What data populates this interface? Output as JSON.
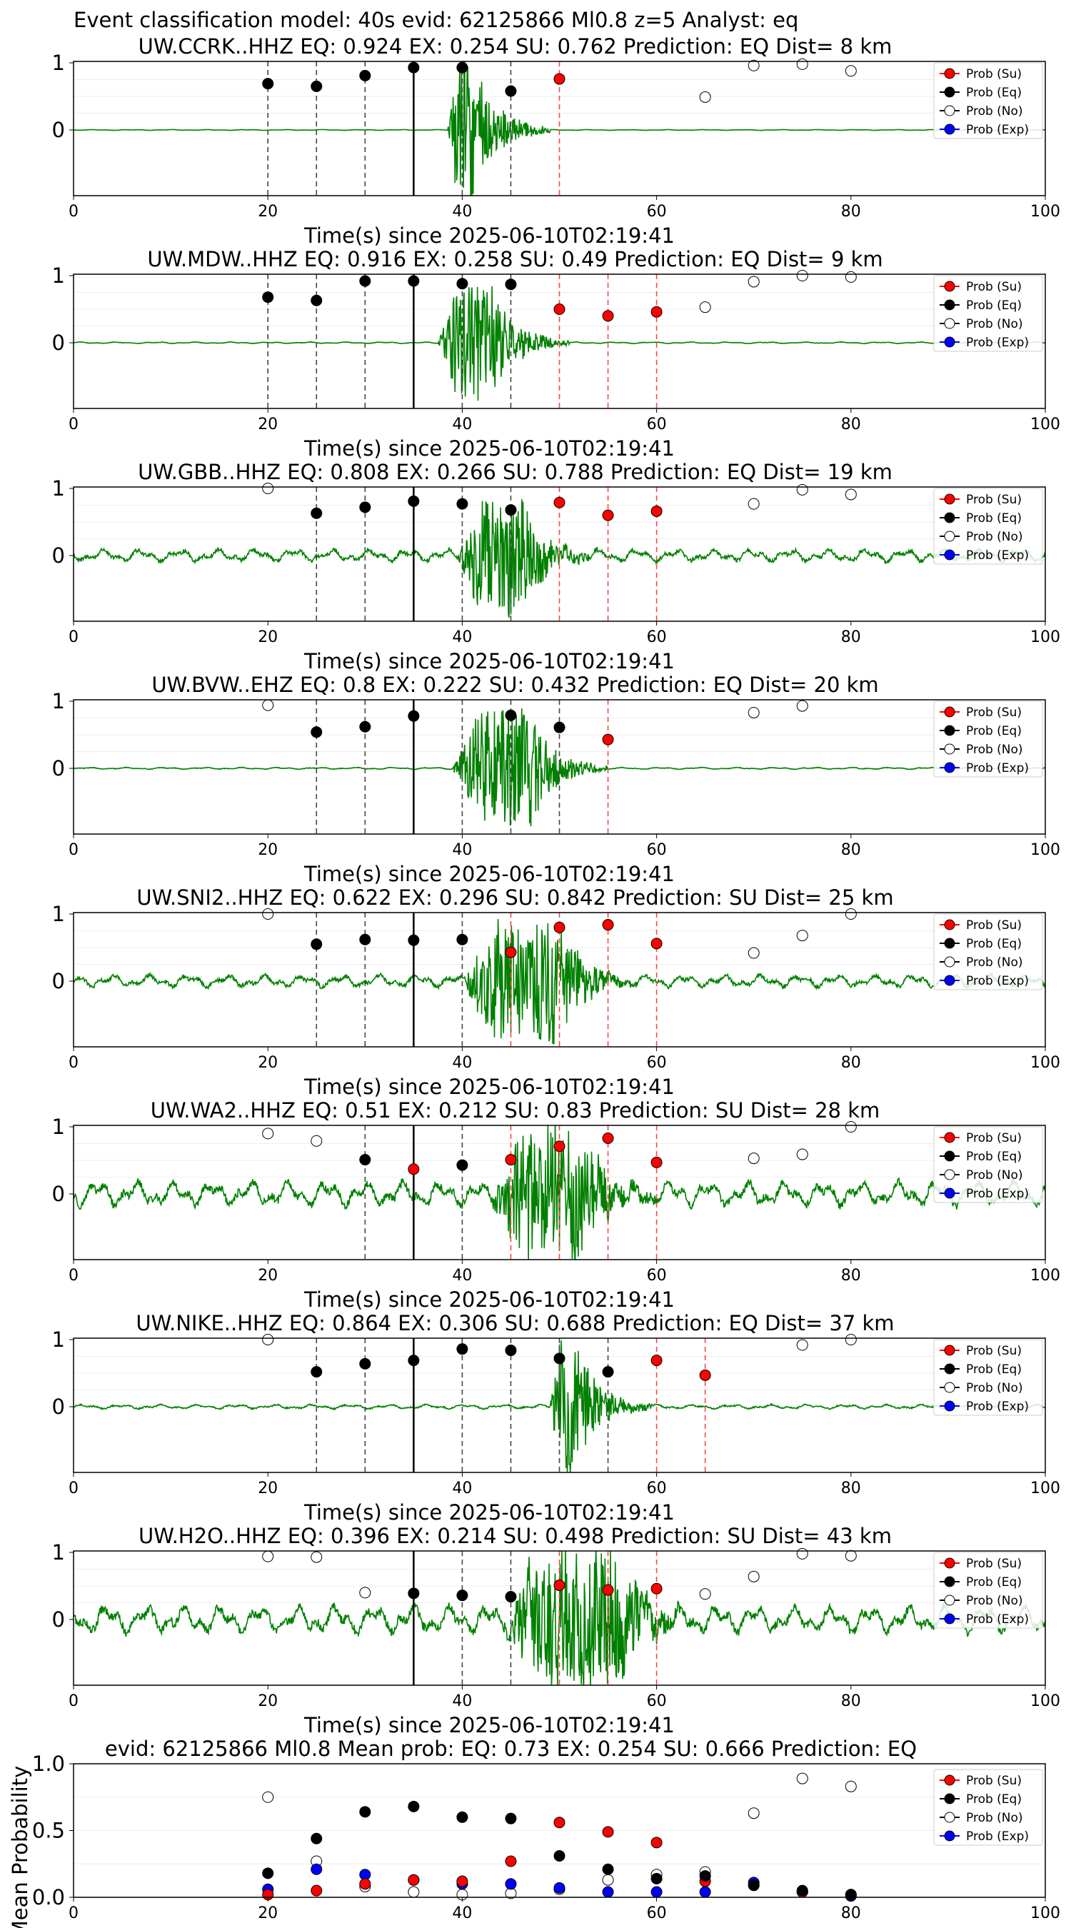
{
  "figure": {
    "title": "Event classification model: 40s evid: 62125866 Ml0.8 z=5 Analyst: eq"
  },
  "colors": {
    "waveform": "#008000",
    "su": "#ff0000",
    "eq": "#000000",
    "no": "#ffffff",
    "exp": "#0000ff",
    "su_line": "#ff4444",
    "eq_line": "#444444",
    "origin_line": "#000000"
  },
  "legend": [
    "Prob (Su)",
    "Prob (Eq)",
    "Prob (No)",
    "Prob (Exp)"
  ],
  "chart_data": [
    {
      "type": "scatter",
      "title": "UW.CCRK..HHZ   EQ: 0.924  EX: 0.254  SU: 0.762   Prediction: EQ    Dist= 8 km",
      "xlabel": "Time(s) since 2025-06-10T02:19:41",
      "xlim": [
        0,
        100
      ],
      "x_ticks": [
        "0",
        "20",
        "40",
        "60",
        "80",
        "100"
      ],
      "y_ticks": [
        "0",
        "1"
      ],
      "noise": 0.006,
      "spike": 1.1,
      "event_start": 38.5,
      "event_end": 41,
      "su": [
        [
          50,
          0.76
        ]
      ],
      "eq": [
        [
          20,
          0.69
        ],
        [
          25,
          0.65
        ],
        [
          30,
          0.81
        ],
        [
          35,
          0.93
        ],
        [
          40,
          0.93
        ],
        [
          45,
          0.58
        ]
      ],
      "no": [
        [
          65,
          0.49
        ],
        [
          70,
          0.96
        ],
        [
          75,
          0.98
        ],
        [
          80,
          0.88
        ]
      ],
      "exp": [],
      "eq_lines": [
        20,
        25,
        30,
        40,
        45
      ],
      "su_lines": [
        50
      ],
      "origin_line": 35
    },
    {
      "type": "scatter",
      "title": "UW.MDW..HHZ   EQ: 0.916  EX: 0.258  SU: 0.49   Prediction: EQ    Dist= 9 km",
      "xlabel": "Time(s) since 2025-06-10T02:19:41",
      "xlim": [
        0,
        100
      ],
      "x_ticks": [
        "0",
        "20",
        "40",
        "60",
        "80",
        "100"
      ],
      "y_ticks": [
        "0",
        "1"
      ],
      "noise": 0.012,
      "spike": 0.9,
      "event_start": 37.5,
      "event_end": 43,
      "su": [
        [
          50,
          0.5
        ],
        [
          55,
          0.4
        ],
        [
          60,
          0.46
        ]
      ],
      "eq": [
        [
          20,
          0.68
        ],
        [
          25,
          0.63
        ],
        [
          30,
          0.92
        ],
        [
          35,
          0.92
        ],
        [
          40,
          0.88
        ],
        [
          45,
          0.87
        ]
      ],
      "no": [
        [
          65,
          0.53
        ],
        [
          70,
          0.91
        ],
        [
          75,
          1.0
        ],
        [
          80,
          0.98
        ]
      ],
      "exp": [],
      "eq_lines": [
        20,
        25,
        30,
        40,
        45
      ],
      "su_lines": [
        50,
        55,
        60
      ],
      "origin_line": 35
    },
    {
      "type": "scatter",
      "title": "UW.GBB..HHZ   EQ: 0.808  EX: 0.266  SU: 0.788   Prediction: EQ    Dist= 19 km",
      "xlabel": "Time(s) since 2025-06-10T02:19:41",
      "xlim": [
        0,
        100
      ],
      "x_ticks": [
        "0",
        "20",
        "40",
        "60",
        "80",
        "100"
      ],
      "y_ticks": [
        "0",
        "1"
      ],
      "noise": 0.1,
      "spike": 0.85,
      "event_start": 39.5,
      "event_end": 46,
      "su": [
        [
          50,
          0.79
        ],
        [
          55,
          0.6
        ],
        [
          60,
          0.66
        ]
      ],
      "eq": [
        [
          25,
          0.63
        ],
        [
          30,
          0.72
        ],
        [
          35,
          0.81
        ],
        [
          40,
          0.77
        ],
        [
          45,
          0.68
        ]
      ],
      "no": [
        [
          20,
          1.0
        ],
        [
          70,
          0.77
        ],
        [
          75,
          0.98
        ],
        [
          80,
          0.91
        ]
      ],
      "exp": [],
      "eq_lines": [
        25,
        30,
        40,
        45
      ],
      "su_lines": [
        50,
        55,
        60
      ],
      "origin_line": 35
    },
    {
      "type": "scatter",
      "title": "UW.BVW..EHZ   EQ: 0.8  EX: 0.222  SU: 0.432   Prediction: EQ    Dist= 20 km",
      "xlabel": "Time(s) since 2025-06-10T02:19:41",
      "xlim": [
        0,
        100
      ],
      "x_ticks": [
        "0",
        "20",
        "40",
        "60",
        "80",
        "100"
      ],
      "y_ticks": [
        "0",
        "1"
      ],
      "noise": 0.015,
      "spike": 0.9,
      "event_start": 39,
      "event_end": 47,
      "su": [
        [
          55,
          0.43
        ]
      ],
      "eq": [
        [
          25,
          0.54
        ],
        [
          30,
          0.62
        ],
        [
          35,
          0.78
        ],
        [
          45,
          0.79
        ],
        [
          50,
          0.61
        ]
      ],
      "no": [
        [
          20,
          0.94
        ],
        [
          70,
          0.83
        ],
        [
          75,
          0.93
        ]
      ],
      "exp": [],
      "eq_lines": [
        25,
        30,
        40,
        45,
        50
      ],
      "su_lines": [
        55
      ],
      "origin_line": 35
    },
    {
      "type": "scatter",
      "title": "UW.SNI2..HHZ   EQ: 0.622  EX: 0.296  SU: 0.842   Prediction: SU    Dist= 25 km",
      "xlabel": "Time(s) since 2025-06-10T02:19:41",
      "xlim": [
        0,
        100
      ],
      "x_ticks": [
        "0",
        "20",
        "40",
        "60",
        "80",
        "100"
      ],
      "y_ticks": [
        "0",
        "1"
      ],
      "noise": 0.1,
      "spike": 0.9,
      "event_start": 40,
      "event_end": 50,
      "su": [
        [
          45,
          0.43
        ],
        [
          50,
          0.8
        ],
        [
          55,
          0.84
        ],
        [
          60,
          0.56
        ]
      ],
      "eq": [
        [
          25,
          0.55
        ],
        [
          30,
          0.62
        ],
        [
          35,
          0.61
        ],
        [
          40,
          0.62
        ]
      ],
      "no": [
        [
          20,
          1.0
        ],
        [
          70,
          0.42
        ],
        [
          75,
          0.68
        ],
        [
          80,
          1.0
        ]
      ],
      "exp": [],
      "eq_lines": [
        25,
        30,
        40
      ],
      "su_lines": [
        45,
        50,
        55,
        60
      ],
      "origin_line": 35
    },
    {
      "type": "scatter",
      "title": "UW.WA2..HHZ   EQ: 0.51  EX: 0.212  SU: 0.83   Prediction: SU    Dist= 28 km",
      "xlabel": "Time(s) since 2025-06-10T02:19:41",
      "xlim": [
        0,
        100
      ],
      "x_ticks": [
        "0",
        "20",
        "40",
        "60",
        "80",
        "100"
      ],
      "y_ticks": [
        "0",
        "1"
      ],
      "noise": 0.2,
      "spike": 1.0,
      "event_start": 43,
      "event_end": 52,
      "su": [
        [
          35,
          0.37
        ],
        [
          45,
          0.51
        ],
        [
          50,
          0.71
        ],
        [
          55,
          0.83
        ],
        [
          60,
          0.47
        ]
      ],
      "eq": [
        [
          30,
          0.51
        ],
        [
          40,
          0.43
        ]
      ],
      "no": [
        [
          20,
          0.9
        ],
        [
          25,
          0.79
        ],
        [
          70,
          0.53
        ],
        [
          75,
          0.59
        ],
        [
          80,
          1.0
        ]
      ],
      "exp": [],
      "eq_lines": [
        30,
        40
      ],
      "su_lines": [
        45,
        50,
        55,
        60
      ],
      "origin_line": 35
    },
    {
      "type": "scatter",
      "title": "UW.NIKE..HHZ   EQ: 0.864  EX: 0.306  SU: 0.688   Prediction: EQ    Dist= 37 km",
      "xlabel": "Time(s) since 2025-06-10T02:19:41",
      "xlim": [
        0,
        100
      ],
      "x_ticks": [
        "0",
        "20",
        "40",
        "60",
        "80",
        "100"
      ],
      "y_ticks": [
        "0",
        "1"
      ],
      "noise": 0.035,
      "spike": 1.0,
      "event_start": 49,
      "event_end": 51.5,
      "su": [
        [
          60,
          0.69
        ],
        [
          65,
          0.47
        ]
      ],
      "eq": [
        [
          25,
          0.52
        ],
        [
          30,
          0.64
        ],
        [
          35,
          0.69
        ],
        [
          40,
          0.86
        ],
        [
          45,
          0.84
        ],
        [
          50,
          0.72
        ],
        [
          55,
          0.52
        ]
      ],
      "no": [
        [
          20,
          1.0
        ],
        [
          75,
          0.92
        ],
        [
          80,
          1.0
        ]
      ],
      "exp": [],
      "eq_lines": [
        25,
        30,
        40,
        45,
        50,
        55
      ],
      "su_lines": [
        60,
        65
      ],
      "origin_line": 35
    },
    {
      "type": "scatter",
      "title": "UW.H2O..HHZ   EQ: 0.396  EX: 0.214  SU: 0.498   Prediction: SU    Dist= 43 km",
      "xlabel": "Time(s) since 2025-06-10T02:19:41",
      "xlim": [
        0,
        100
      ],
      "x_ticks": [
        "0",
        "20",
        "40",
        "60",
        "80",
        "100"
      ],
      "y_ticks": [
        "0",
        "1"
      ],
      "noise": 0.22,
      "spike": 1.0,
      "event_start": 44,
      "event_end": 56,
      "su": [
        [
          50,
          0.51
        ],
        [
          55,
          0.44
        ],
        [
          60,
          0.46
        ]
      ],
      "eq": [
        [
          35,
          0.39
        ],
        [
          40,
          0.36
        ],
        [
          45,
          0.34
        ]
      ],
      "no": [
        [
          20,
          0.94
        ],
        [
          25,
          0.93
        ],
        [
          30,
          0.4
        ],
        [
          65,
          0.38
        ],
        [
          70,
          0.64
        ],
        [
          75,
          0.98
        ],
        [
          80,
          0.95
        ]
      ],
      "exp": [],
      "eq_lines": [
        40,
        45
      ],
      "su_lines": [
        50,
        55,
        60
      ],
      "origin_line": 35
    },
    {
      "type": "scatter",
      "title": "evid: 62125866  Ml0.8   Mean prob:   EQ: 0.73  EX: 0.254  SU: 0.666   Prediction: EQ",
      "ylabel": "Mean Probability",
      "xlim": [
        0,
        100
      ],
      "ylim": [
        0,
        1
      ],
      "x_ticks": [
        "0",
        "20",
        "40",
        "60",
        "80",
        "100"
      ],
      "y_ticks": [
        "0.0",
        "0.5",
        "1.0"
      ],
      "su": [
        [
          20,
          0.02
        ],
        [
          25,
          0.05
        ],
        [
          30,
          0.1
        ],
        [
          35,
          0.13
        ],
        [
          40,
          0.12
        ],
        [
          45,
          0.27
        ],
        [
          50,
          0.56
        ],
        [
          55,
          0.49
        ],
        [
          60,
          0.41
        ],
        [
          65,
          0.12
        ],
        [
          70,
          0.09
        ],
        [
          75,
          0.04
        ],
        [
          80,
          0.02
        ]
      ],
      "eq": [
        [
          20,
          0.18
        ],
        [
          25,
          0.44
        ],
        [
          30,
          0.64
        ],
        [
          35,
          0.68
        ],
        [
          40,
          0.6
        ],
        [
          45,
          0.59
        ],
        [
          50,
          0.31
        ],
        [
          55,
          0.21
        ],
        [
          60,
          0.14
        ],
        [
          65,
          0.16
        ],
        [
          70,
          0.09
        ],
        [
          75,
          0.05
        ],
        [
          80,
          0.02
        ]
      ],
      "no": [
        [
          20,
          0.75
        ],
        [
          25,
          0.27
        ],
        [
          30,
          0.08
        ],
        [
          35,
          0.04
        ],
        [
          40,
          0.02
        ],
        [
          45,
          0.03
        ],
        [
          50,
          0.06
        ],
        [
          55,
          0.13
        ],
        [
          60,
          0.17
        ],
        [
          65,
          0.19
        ],
        [
          70,
          0.63
        ],
        [
          75,
          0.89
        ],
        [
          80,
          0.83
        ]
      ],
      "exp": [
        [
          20,
          0.06
        ],
        [
          25,
          0.21
        ],
        [
          30,
          0.17
        ],
        [
          35,
          0.13
        ],
        [
          40,
          0.1
        ],
        [
          45,
          0.1
        ],
        [
          50,
          0.07
        ],
        [
          55,
          0.04
        ],
        [
          60,
          0.04
        ],
        [
          65,
          0.04
        ],
        [
          70,
          0.11
        ],
        [
          75,
          0.04
        ],
        [
          80,
          0.01
        ]
      ]
    }
  ]
}
